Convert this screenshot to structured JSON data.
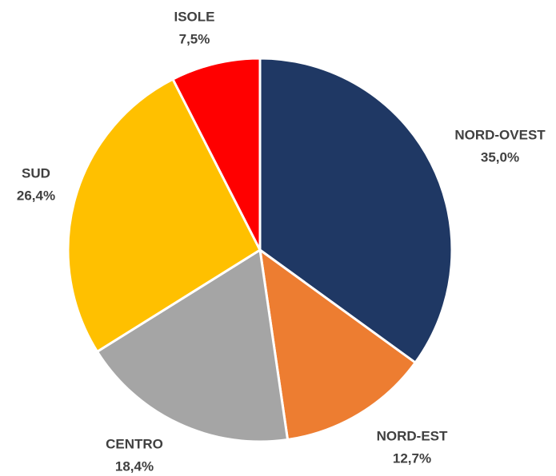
{
  "chart_data": {
    "type": "pie",
    "categories": [
      "NORD-OVEST",
      "NORD-EST",
      "CENTRO",
      "SUD",
      "ISOLE"
    ],
    "values": [
      35.0,
      12.7,
      18.4,
      26.4,
      7.5
    ],
    "value_labels": [
      "35,0%",
      "12,7%",
      "18,4%",
      "26,4%",
      "7,5%"
    ],
    "colors": [
      "#1f3864",
      "#ed7d31",
      "#a5a5a5",
      "#ffc000",
      "#ff0000"
    ]
  }
}
